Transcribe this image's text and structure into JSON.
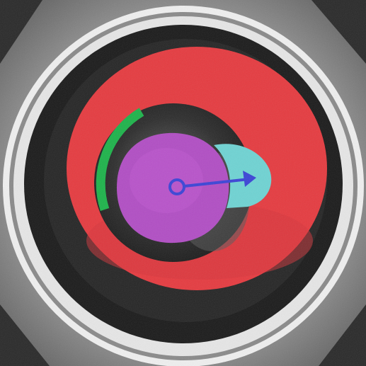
{
  "image": {
    "description_tags": [
      "segmentation-overlay",
      "grayscale-micrograph"
    ],
    "colors": {
      "background_dark": "#1f1f1f",
      "background_light": "#e9e9e9",
      "outer_ring_light": "#f2f2f2",
      "outer_ring_dark": "#121212",
      "red_region": "#e83a3f",
      "green_arc": "#1cb34a",
      "magenta_region": "#b04fc3",
      "cyan_region": "#6fd3d3",
      "arrow": "#3b44d6"
    },
    "labels": []
  }
}
